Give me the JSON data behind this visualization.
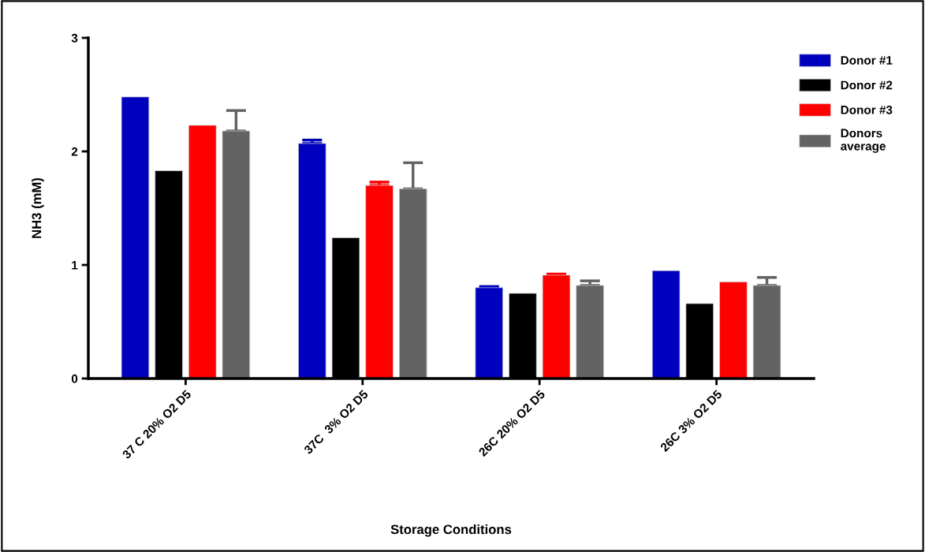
{
  "chart_data": {
    "type": "bar",
    "xlabel": "Storage Conditions",
    "ylabel": "NH3 (mM)",
    "categories": [
      "37 C 20% O2 D5",
      "37C  3% O2 D5",
      "26C 20% O2 D5",
      "26C 3% O2 D5"
    ],
    "series": [
      {
        "name": "Donor #1",
        "color": "#0000bf",
        "values": [
          2.48,
          2.07,
          0.8,
          0.95
        ],
        "errors": [
          null,
          [
            2.07,
            2.1
          ],
          [
            0.8,
            0.81
          ],
          null
        ]
      },
      {
        "name": "Donor #2",
        "color": "#000000",
        "values": [
          1.83,
          1.24,
          0.75,
          0.66
        ],
        "errors": [
          null,
          null,
          null,
          null
        ]
      },
      {
        "name": "Donor #3",
        "color": "#ff0000",
        "values": [
          2.23,
          1.7,
          0.91,
          0.85
        ],
        "errors": [
          null,
          [
            1.7,
            1.73
          ],
          [
            0.91,
            0.92
          ],
          null
        ]
      },
      {
        "name": "Donors average",
        "color": "#636363",
        "values": [
          2.18,
          1.67,
          0.82,
          0.82
        ],
        "errors": [
          [
            2.18,
            2.36
          ],
          [
            1.67,
            1.9
          ],
          [
            0.82,
            0.86
          ],
          [
            0.82,
            0.89
          ]
        ]
      }
    ],
    "ylim": [
      0,
      3
    ],
    "yticks": [
      0,
      1,
      2,
      3
    ],
    "grid": false,
    "legend": "top right"
  }
}
